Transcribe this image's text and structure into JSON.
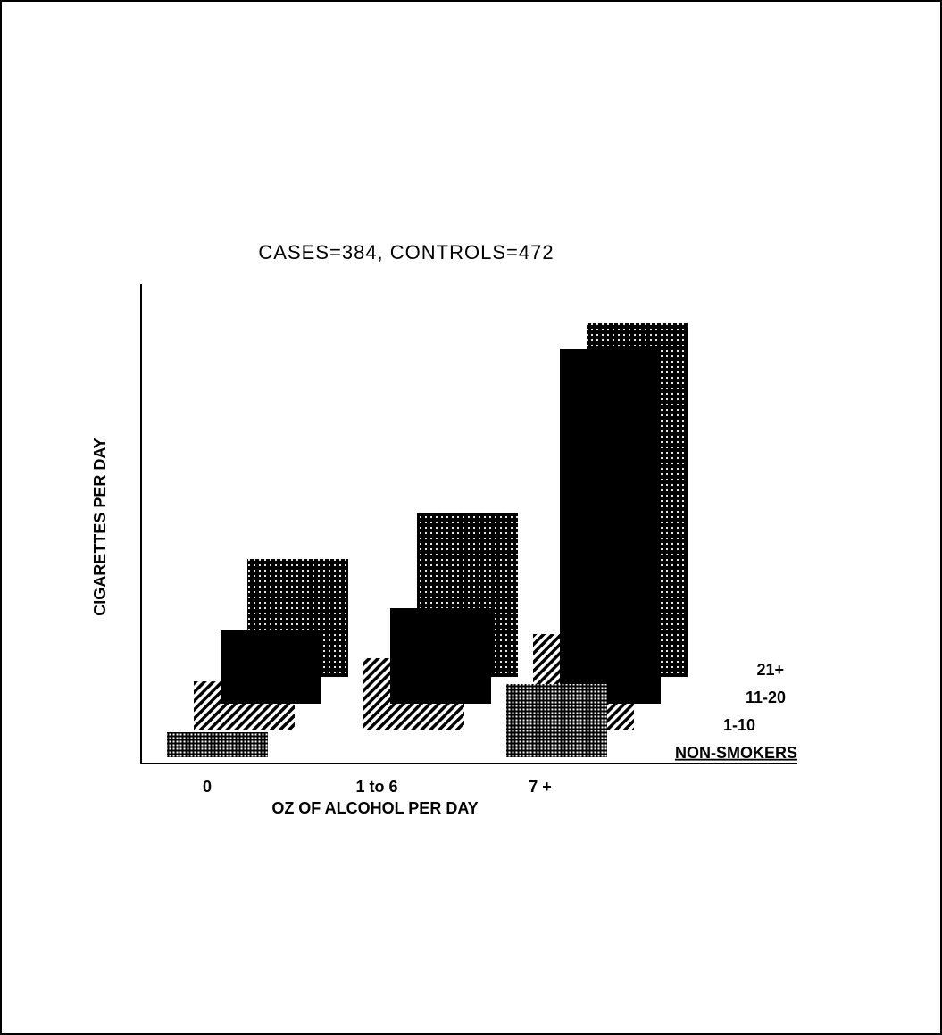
{
  "chart_data": {
    "type": "bar3d",
    "title": "CASES=384,  CONTROLS=472",
    "x_label": "OZ OF ALCOHOL PER DAY",
    "y_label": "CIGARETTES PER DAY",
    "categories": [
      "0",
      "1 to 6",
      "7 +"
    ],
    "series": [
      {
        "name": "21+",
        "color": "#000000",
        "pattern": "dots",
        "values": [
          132,
          184,
          396
        ]
      },
      {
        "name": "11-20",
        "color": "#000000",
        "pattern": "solid",
        "values": [
          82,
          107,
          397
        ]
      },
      {
        "name": "1-10",
        "color": "#000000",
        "pattern": "hatch",
        "values": [
          55,
          81,
          108
        ]
      },
      {
        "name": "NON-SMOKERS",
        "color": "#000000",
        "pattern": "grid",
        "values": [
          28,
          0,
          82
        ]
      }
    ]
  }
}
